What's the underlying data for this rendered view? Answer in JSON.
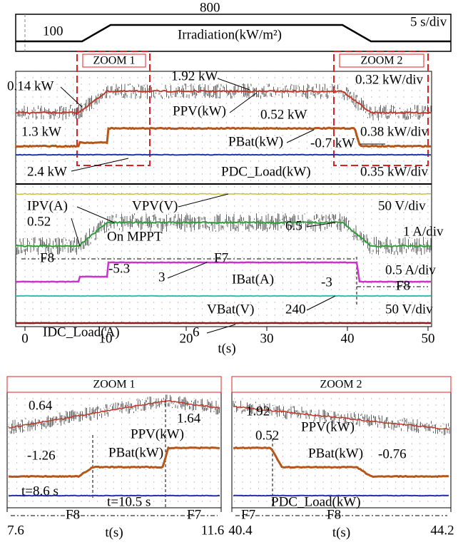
{
  "irradiation_panel": {
    "high": "800",
    "low": "100",
    "title": "Irradiation(kW/m²)",
    "scale": "5 s/div",
    "zoom_boxes": [
      "ZOOM 1",
      "ZOOM 2"
    ]
  },
  "main_panel": {
    "annotations": [
      "0.14 kW",
      "1.92 kW",
      "0.32 kW/div",
      "PPV(kW)",
      "0.52 kW",
      "1.3 kW",
      "PBat(kW)",
      "-0.7 kW",
      "0.38 kW/div",
      "2.4 kW",
      "PDC_Load(kW)",
      "0.35 kW/div",
      "IPV(A)",
      "VPV(V)",
      "50 V/div",
      "0.52",
      "6.5",
      "1 A/div",
      "On MPPT",
      "F8",
      "F7",
      "0.5 A/div",
      "3",
      "IBat(A)",
      "-5.3",
      "-3",
      "F8",
      "VBat(V)",
      "240",
      "50 V/div",
      "IDC_Load(A)",
      "6"
    ],
    "x_axis": {
      "label": "t(s)",
      "xlim": [
        0,
        50
      ],
      "xticks": [
        0,
        10,
        20,
        30,
        40,
        50
      ]
    }
  },
  "zoom_panels": [
    {
      "title": "ZOOM 1",
      "annotations": [
        "0.64",
        "1.64",
        "PPV(kW)",
        "-1.26",
        "PBat(kW)",
        "t=8.6 s",
        "t=10.5 s",
        "F8",
        "F7"
      ],
      "x_axis": {
        "label": "t(s)",
        "xlim": [
          7.6,
          11.6
        ],
        "xticks": [
          7.6,
          11.6
        ]
      }
    },
    {
      "title": "ZOOM 2",
      "annotations": [
        "1.92",
        "0.52",
        "PPV(kW)",
        "PBat(kW)",
        "-0.76",
        "PDC_Load(kW)",
        "F7",
        "F8"
      ],
      "x_axis": {
        "label": "t(s)",
        "xlim": [
          40.4,
          44.2
        ],
        "xticks": [
          40.4,
          44.2
        ]
      }
    }
  ]
}
